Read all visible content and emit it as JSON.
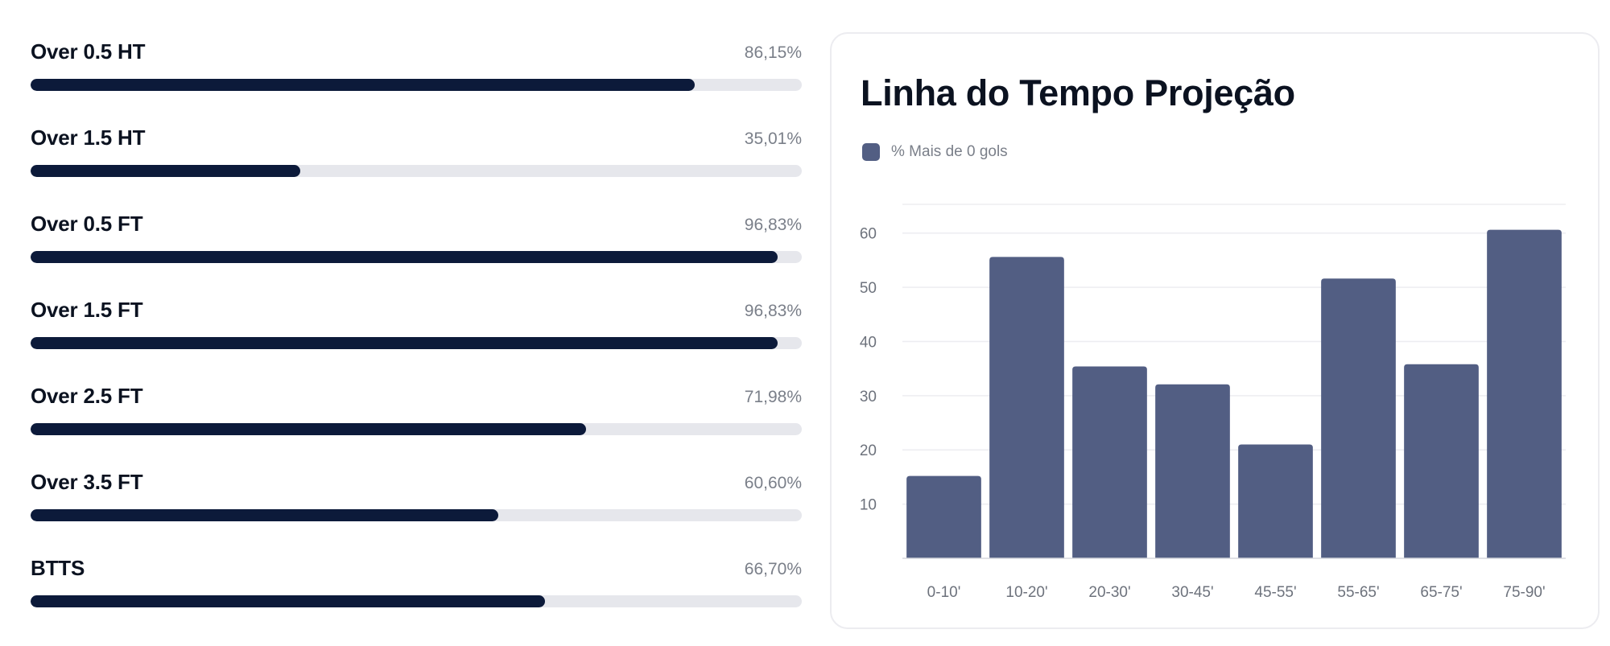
{
  "stats": [
    {
      "label": "Over 0.5 HT",
      "value_text": "86,15%",
      "percent": 86.15
    },
    {
      "label": "Over 1.5 HT",
      "value_text": "35,01%",
      "percent": 35.01
    },
    {
      "label": "Over 0.5 FT",
      "value_text": "96,83%",
      "percent": 96.83
    },
    {
      "label": "Over 1.5 FT",
      "value_text": "96,83%",
      "percent": 96.83
    },
    {
      "label": "Over 2.5 FT",
      "value_text": "71,98%",
      "percent": 71.98
    },
    {
      "label": "Over 3.5 FT",
      "value_text": "60,60%",
      "percent": 60.6
    },
    {
      "label": "BTTS",
      "value_text": "66,70%",
      "percent": 66.7
    }
  ],
  "colors": {
    "bar_fill": "#0c1a3a",
    "track": "#e6e7ec",
    "series": "#525e83"
  },
  "chart_data": {
    "type": "bar",
    "title": "Linha do Tempo Projeção",
    "xlabel": "",
    "ylabel": "",
    "categories": [
      "0-10'",
      "10-20'",
      "20-30'",
      "30-45'",
      "45-55'",
      "55-65'",
      "65-75'",
      "75-90'"
    ],
    "series": [
      {
        "name": "% Mais de 0 gols",
        "values": [
          15.2,
          55.6,
          35.4,
          32.1,
          21.0,
          51.6,
          35.8,
          60.6
        ]
      }
    ],
    "yticks": [
      10,
      20,
      30,
      40,
      50,
      60
    ],
    "ylim": [
      0,
      65
    ],
    "grid": true,
    "legend": "top-left"
  }
}
